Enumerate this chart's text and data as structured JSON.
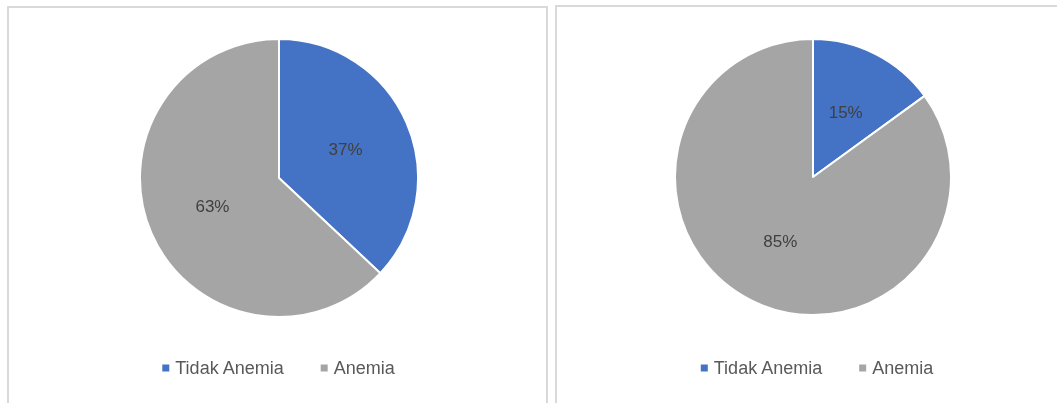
{
  "chart_data": [
    {
      "type": "pie",
      "categories": [
        "Tidak Anemia",
        "Anemia"
      ],
      "values": [
        37,
        63
      ],
      "colors": [
        "#4472c4",
        "#a5a5a5"
      ],
      "value_labels": [
        "37%",
        "63%"
      ],
      "legend": "bottom"
    },
    {
      "type": "pie",
      "categories": [
        "Tidak Anemia",
        "Anemia"
      ],
      "values": [
        15,
        85
      ],
      "colors": [
        "#4472c4",
        "#a5a5a5"
      ],
      "value_labels": [
        "15%",
        "85%"
      ],
      "legend": "bottom"
    }
  ]
}
